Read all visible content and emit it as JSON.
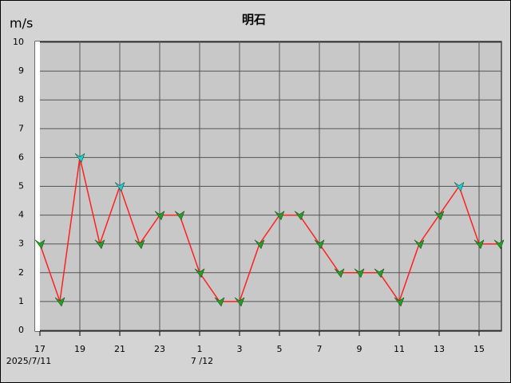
{
  "chart_data": {
    "type": "line",
    "title": "明石",
    "y_label": "m/s",
    "categories": [
      "17",
      null,
      "19",
      null,
      "21",
      null,
      "23",
      null,
      "1",
      null,
      "3",
      null,
      "5",
      null,
      "7",
      null,
      "9",
      null,
      "11",
      null,
      "13",
      null,
      "15",
      null
    ],
    "x_date_labels": [
      "2025/7/11",
      "7 /12"
    ],
    "series": [
      {
        "color": "#ff2020",
        "values": [
          3,
          1,
          6,
          3,
          5,
          3,
          4,
          4,
          2,
          1,
          1,
          3,
          4,
          4,
          3,
          2,
          2,
          2,
          1,
          3,
          4,
          5,
          3,
          3
        ]
      }
    ],
    "point_colors": [
      "#2a9a2a",
      "#2a9a2a",
      "#20c8d8",
      "#2a9a2a",
      "#20c8d8",
      "#2a9a2a",
      "#2a9a2a",
      "#2a9a2a",
      "#2a9a2a",
      "#2a9a2a",
      "#2a9a2a",
      "#2a9a2a",
      "#2a9a2a",
      "#2a9a2a",
      "#2a9a2a",
      "#2a9a2a",
      "#2a9a2a",
      "#2a9a2a",
      "#2a9a2a",
      "#2a9a2a",
      "#2a9a2a",
      "#20c8d8",
      "#2a9a2a",
      "#2a9a2a"
    ],
    "ylim": [
      0,
      10
    ],
    "yticks": [
      0,
      1,
      2,
      3,
      4,
      5,
      6,
      7,
      8,
      9,
      10
    ],
    "grid": true
  }
}
